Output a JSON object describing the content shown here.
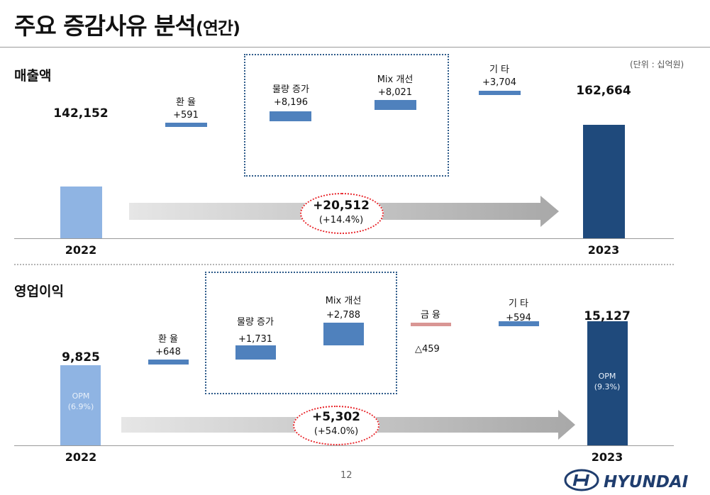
{
  "title": {
    "main": "주요 증감사유 분석",
    "sub": "(연간)"
  },
  "unit_note": "(단위 : 십억원)",
  "page_number": "12",
  "logo_text": "HYUNDAI",
  "colors": {
    "bar_2022": "#8fb4e3",
    "bar_2023": "#1f4a7c",
    "bar_step": "#4f81bd",
    "bar_negative": "#d99694",
    "arrow": "#d4d4d4",
    "ellipse": "#e8262b",
    "dotbox": "#2e5b8a"
  },
  "chart_data": [
    {
      "type": "bar",
      "title": "매출액",
      "categories": [
        "2022",
        "환 율",
        "물량 증가",
        "Mix 개선",
        "기 타",
        "2023"
      ],
      "values": [
        142152,
        591,
        8196,
        8021,
        3704,
        162664
      ],
      "labels": [
        "142,152",
        "+591",
        "+8,196",
        "+8,021",
        "+3,704",
        "162,664"
      ],
      "total_change": "+20,512",
      "total_change_pct": "(+14.4%)"
    },
    {
      "type": "bar",
      "title": "영업이익",
      "categories": [
        "2022",
        "환 율",
        "물량 증가",
        "Mix 개선",
        "금 융",
        "기 타",
        "2023"
      ],
      "values": [
        9825,
        648,
        1731,
        2788,
        -459,
        594,
        15127
      ],
      "labels": [
        "9,825",
        "+648",
        "+1,731",
        "+2,788",
        "△459",
        "+594",
        "15,127"
      ],
      "opm": [
        {
          "label": "OPM",
          "value": "(6.9%)"
        },
        {
          "label": "OPM",
          "value": "(9.3%)"
        }
      ],
      "total_change": "+5,302",
      "total_change_pct": "(+54.0%)"
    }
  ]
}
